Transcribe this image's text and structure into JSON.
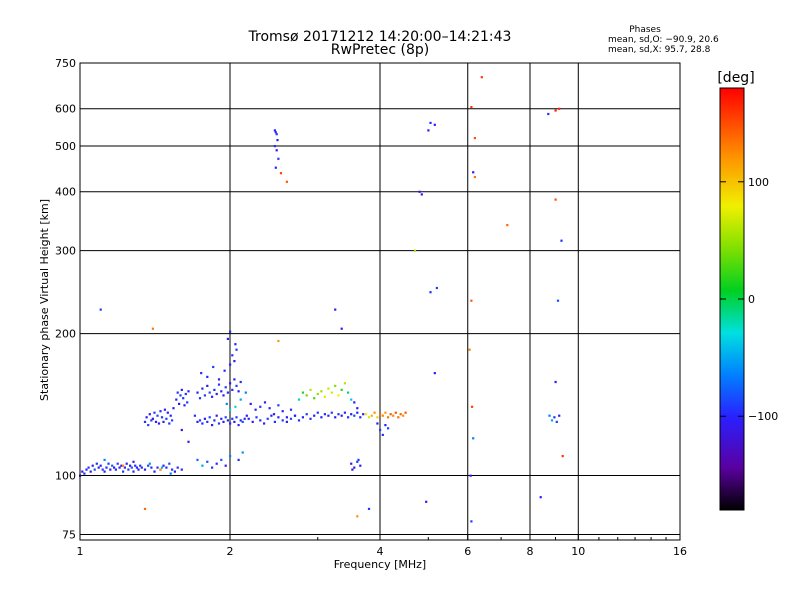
{
  "chart_data": {
    "type": "scatter",
    "title": "Tromsø 20171212 14:20:00–14:21:43",
    "subtitle": "RwPretec (8p)",
    "xlabel": "Frequency [MHz]",
    "ylabel": "Stationary phase Virtual Height [km]",
    "x_scale": "log2",
    "y_scale": "log",
    "xlim": [
      1,
      16
    ],
    "ylim": [
      73,
      750
    ],
    "x_ticks": [
      1,
      2,
      4,
      6,
      8,
      10,
      16
    ],
    "x_tick_labels": [
      "1",
      "2",
      "4",
      "6",
      "8",
      "10",
      "16"
    ],
    "y_ticks": [
      75,
      100,
      200,
      300,
      400,
      500,
      600,
      750
    ],
    "y_tick_labels": [
      "75",
      "100",
      "200",
      "300",
      "400",
      "500",
      "600",
      "750"
    ],
    "grid": true,
    "phases_box": {
      "title": "Phases",
      "line_o": "mean, sd,O: −90.9, 20.6",
      "line_x": "mean, sd,X:  95.7, 28.8"
    },
    "colorbar": {
      "label": "[deg]",
      "range": [
        -180,
        180
      ],
      "ticks": [
        100,
        0,
        -100
      ],
      "tick_labels": [
        "100",
        "0",
        "−100"
      ]
    },
    "points": [
      [
        1.0,
        100,
        -110
      ],
      [
        1.01,
        102,
        -115
      ],
      [
        1.02,
        101,
        -105
      ],
      [
        1.03,
        103,
        -110
      ],
      [
        1.04,
        104,
        -100
      ],
      [
        1.05,
        102,
        -120
      ],
      [
        1.06,
        105,
        -110
      ],
      [
        1.07,
        103,
        -95
      ],
      [
        1.08,
        106,
        -105
      ],
      [
        1.09,
        104,
        -112
      ],
      [
        1.1,
        105,
        -108
      ],
      [
        1.11,
        103,
        -100
      ],
      [
        1.12,
        102,
        -118
      ],
      [
        1.13,
        104,
        -106
      ],
      [
        1.14,
        106,
        -102
      ],
      [
        1.15,
        103,
        -110
      ],
      [
        1.16,
        105,
        -90
      ],
      [
        1.17,
        104,
        -114
      ],
      [
        1.18,
        103,
        -105
      ],
      [
        1.19,
        106,
        -98
      ],
      [
        1.2,
        104,
        -110
      ],
      [
        1.21,
        105,
        -120
      ],
      [
        1.22,
        102,
        -104
      ],
      [
        1.23,
        104,
        -108
      ],
      [
        1.24,
        106,
        -112
      ],
      [
        1.25,
        103,
        -100
      ],
      [
        1.26,
        105,
        -116
      ],
      [
        1.27,
        104,
        -95
      ],
      [
        1.28,
        102,
        -108
      ],
      [
        1.29,
        105,
        -103
      ],
      [
        1.3,
        104,
        -110
      ],
      [
        1.31,
        103,
        -119
      ],
      [
        1.32,
        105,
        -101
      ],
      [
        1.33,
        104,
        -107
      ],
      [
        1.35,
        103,
        -112
      ],
      [
        1.37,
        105,
        -99
      ],
      [
        1.39,
        104,
        -108
      ],
      [
        1.41,
        102,
        -115
      ],
      [
        1.43,
        104,
        -105
      ],
      [
        1.45,
        103,
        -100
      ],
      [
        1.47,
        105,
        -112
      ],
      [
        1.49,
        104,
        -109
      ],
      [
        1.51,
        106,
        -95
      ],
      [
        1.53,
        103,
        -104
      ],
      [
        1.55,
        102,
        -117
      ],
      [
        1.57,
        104,
        -106
      ],
      [
        1.12,
        108,
        -75
      ],
      [
        1.28,
        107,
        -115
      ],
      [
        1.38,
        106,
        -70
      ],
      [
        1.46,
        104,
        -55
      ],
      [
        1.52,
        101,
        -80
      ],
      [
        1.6,
        103,
        -105
      ],
      [
        1.35,
        130,
        -105
      ],
      [
        1.36,
        133,
        -112
      ],
      [
        1.37,
        128,
        -98
      ],
      [
        1.38,
        135,
        -110
      ],
      [
        1.39,
        131,
        -104
      ],
      [
        1.4,
        132,
        -118
      ],
      [
        1.41,
        136,
        -100
      ],
      [
        1.42,
        130,
        -110
      ],
      [
        1.43,
        134,
        -95
      ],
      [
        1.44,
        129,
        -112
      ],
      [
        1.45,
        137,
        -106
      ],
      [
        1.46,
        133,
        -102
      ],
      [
        1.47,
        130,
        -114
      ],
      [
        1.48,
        138,
        -108
      ],
      [
        1.49,
        132,
        -100
      ],
      [
        1.5,
        136,
        -115
      ],
      [
        1.51,
        129,
        -103
      ],
      [
        1.52,
        134,
        -109
      ],
      [
        1.53,
        131,
        -97
      ],
      [
        1.54,
        139,
        -111
      ],
      [
        1.56,
        145,
        -108
      ],
      [
        1.57,
        150,
        -102
      ],
      [
        1.58,
        142,
        -115
      ],
      [
        1.59,
        148,
        -99
      ],
      [
        1.6,
        152,
        -110
      ],
      [
        1.61,
        146,
        -104
      ],
      [
        1.62,
        141,
        -112
      ],
      [
        1.63,
        149,
        -106
      ],
      [
        1.64,
        143,
        -101
      ],
      [
        1.65,
        151,
        -113
      ],
      [
        1.6,
        125,
        -120
      ],
      [
        1.65,
        118,
        -110
      ],
      [
        1.7,
        134,
        -105
      ],
      [
        1.72,
        130,
        -112
      ],
      [
        1.74,
        131,
        -100
      ],
      [
        1.76,
        129,
        -109
      ],
      [
        1.78,
        132,
        -115
      ],
      [
        1.8,
        130,
        -103
      ],
      [
        1.82,
        133,
        -98
      ],
      [
        1.84,
        128,
        -110
      ],
      [
        1.86,
        131,
        -106
      ],
      [
        1.88,
        134,
        -112
      ],
      [
        1.9,
        129,
        -102
      ],
      [
        1.92,
        132,
        -108
      ],
      [
        1.94,
        130,
        -115
      ],
      [
        1.96,
        133,
        -99
      ],
      [
        1.98,
        131,
        -105
      ],
      [
        2.0,
        129,
        -110
      ],
      [
        2.02,
        132,
        -103
      ],
      [
        2.04,
        130,
        -116
      ],
      [
        2.06,
        133,
        -100
      ],
      [
        2.08,
        128,
        -109
      ],
      [
        2.1,
        131,
        -112
      ],
      [
        2.12,
        130,
        -95
      ],
      [
        2.14,
        132,
        -107
      ],
      [
        2.16,
        134,
        -113
      ],
      [
        1.72,
        150,
        -112
      ],
      [
        1.74,
        146,
        -104
      ],
      [
        1.76,
        153,
        -108
      ],
      [
        1.78,
        148,
        -100
      ],
      [
        1.8,
        155,
        -115
      ],
      [
        1.82,
        150,
        -96
      ],
      [
        1.84,
        147,
        -110
      ],
      [
        1.86,
        152,
        -106
      ],
      [
        1.88,
        149,
        -113
      ],
      [
        1.9,
        156,
        -102
      ],
      [
        1.92,
        151,
        -109
      ],
      [
        1.94,
        148,
        -117
      ],
      [
        1.96,
        154,
        -101
      ],
      [
        1.98,
        150,
        -108
      ],
      [
        2.0,
        157,
        -112
      ],
      [
        2.02,
        152,
        -104
      ],
      [
        2.04,
        160,
        -110
      ],
      [
        2.06,
        155,
        -99
      ],
      [
        2.08,
        151,
        -114
      ],
      [
        2.1,
        158,
        -106
      ],
      [
        1.75,
        165,
        -105
      ],
      [
        1.8,
        162,
        -108
      ],
      [
        1.85,
        170,
        -100
      ],
      [
        1.9,
        160,
        -112
      ],
      [
        1.95,
        167,
        -106
      ],
      [
        2.0,
        172,
        -110
      ],
      [
        2.02,
        180,
        -104
      ],
      [
        2.04,
        175,
        -116
      ],
      [
        2.06,
        185,
        -102
      ],
      [
        2.05,
        190,
        -110
      ],
      [
        2.0,
        202,
        -105
      ],
      [
        1.98,
        195,
        -112
      ],
      [
        1.97,
        142,
        -75
      ],
      [
        2.0,
        138,
        -35
      ],
      [
        2.05,
        140,
        -25
      ],
      [
        2.1,
        145,
        -60
      ],
      [
        2.15,
        150,
        -80
      ],
      [
        2.2,
        142,
        -115
      ],
      [
        2.25,
        138,
        -108
      ],
      [
        2.3,
        140,
        -102
      ],
      [
        2.35,
        143,
        -111
      ],
      [
        2.4,
        139,
        -106
      ],
      [
        2.45,
        135,
        -113
      ],
      [
        2.5,
        141,
        -100
      ],
      [
        2.55,
        137,
        -109
      ],
      [
        2.6,
        133,
        -115
      ],
      [
        2.65,
        138,
        -104
      ],
      [
        2.7,
        134,
        -110
      ],
      [
        2.18,
        132,
        -108
      ],
      [
        2.22,
        130,
        -112
      ],
      [
        2.26,
        133,
        -101
      ],
      [
        2.3,
        131,
        -107
      ],
      [
        2.34,
        129,
        -114
      ],
      [
        2.38,
        132,
        -99
      ],
      [
        2.42,
        134,
        -110
      ],
      [
        2.46,
        130,
        -105
      ],
      [
        2.5,
        133,
        -112
      ],
      [
        2.55,
        131,
        -103
      ],
      [
        2.6,
        130,
        -109
      ],
      [
        2.65,
        132,
        -96
      ],
      [
        2.7,
        134,
        -113
      ],
      [
        2.75,
        131,
        -104
      ],
      [
        2.8,
        133,
        -110
      ],
      [
        2.85,
        135,
        -101
      ],
      [
        2.9,
        132,
        -108
      ],
      [
        2.95,
        134,
        -115
      ],
      [
        3.0,
        136,
        -102
      ],
      [
        3.05,
        133,
        -109
      ],
      [
        3.1,
        135,
        -106
      ],
      [
        3.15,
        134,
        -112
      ],
      [
        3.2,
        136,
        -100
      ],
      [
        3.25,
        133,
        -111
      ],
      [
        3.3,
        135,
        -104
      ],
      [
        3.35,
        134,
        -115
      ],
      [
        3.4,
        136,
        -108
      ],
      [
        3.45,
        133,
        -103
      ],
      [
        3.5,
        135,
        -110
      ],
      [
        3.55,
        134,
        -97
      ],
      [
        3.6,
        136,
        -112
      ],
      [
        3.65,
        133,
        -106
      ],
      [
        3.7,
        135,
        -109
      ],
      [
        2.75,
        145,
        -20
      ],
      [
        2.8,
        150,
        20
      ],
      [
        2.85,
        148,
        40
      ],
      [
        2.9,
        152,
        60
      ],
      [
        2.95,
        146,
        30
      ],
      [
        3.0,
        149,
        50
      ],
      [
        3.05,
        151,
        55
      ],
      [
        3.1,
        147,
        75
      ],
      [
        3.15,
        153,
        65
      ],
      [
        3.2,
        150,
        70
      ],
      [
        3.25,
        155,
        45
      ],
      [
        3.3,
        148,
        80
      ],
      [
        3.35,
        152,
        25
      ],
      [
        3.4,
        157,
        60
      ],
      [
        3.45,
        150,
        -10
      ],
      [
        3.5,
        145,
        -40
      ],
      [
        3.55,
        143,
        -115
      ],
      [
        3.6,
        139,
        -110
      ],
      [
        3.5,
        106,
        -108
      ],
      [
        3.55,
        104,
        -113
      ],
      [
        3.6,
        107,
        -102
      ],
      [
        3.65,
        105,
        -110
      ],
      [
        3.52,
        103,
        -120
      ],
      [
        3.62,
        108,
        -98
      ],
      [
        3.75,
        135,
        85
      ],
      [
        3.8,
        133,
        70
      ],
      [
        3.85,
        134,
        110
      ],
      [
        3.9,
        136,
        125
      ],
      [
        3.95,
        133,
        95
      ],
      [
        4.0,
        135,
        140
      ],
      [
        4.05,
        134,
        130
      ],
      [
        4.1,
        136,
        120
      ],
      [
        4.15,
        133,
        135
      ],
      [
        4.2,
        135,
        145
      ],
      [
        4.25,
        134,
        128
      ],
      [
        4.3,
        136,
        150
      ],
      [
        4.35,
        133,
        138
      ],
      [
        4.4,
        135,
        142
      ],
      [
        4.45,
        134,
        125
      ],
      [
        4.5,
        136,
        148
      ],
      [
        4.0,
        125,
        -100
      ],
      [
        4.05,
        122,
        -105
      ],
      [
        4.1,
        128,
        -110
      ],
      [
        4.15,
        126,
        -98
      ],
      [
        3.95,
        129,
        -112
      ],
      [
        1.72,
        108,
        -85
      ],
      [
        1.76,
        105,
        -60
      ],
      [
        1.8,
        107,
        -95
      ],
      [
        1.84,
        104,
        -102
      ],
      [
        1.88,
        106,
        -108
      ],
      [
        1.92,
        108,
        -90
      ],
      [
        1.96,
        105,
        -112
      ],
      [
        2.0,
        110,
        -80
      ],
      [
        2.08,
        108,
        -105
      ],
      [
        2.12,
        112,
        -70
      ],
      [
        2.46,
        540,
        -112
      ],
      [
        2.47,
        535,
        -106
      ],
      [
        2.48,
        530,
        -100
      ],
      [
        2.49,
        515,
        -110
      ],
      [
        2.46,
        500,
        -105
      ],
      [
        2.48,
        490,
        -116
      ],
      [
        2.5,
        470,
        -102
      ],
      [
        2.47,
        450,
        -108
      ],
      [
        2.53,
        438,
        155
      ],
      [
        5.0,
        540,
        -112
      ],
      [
        5.05,
        560,
        -105
      ],
      [
        5.15,
        555,
        -110
      ],
      [
        4.8,
        400,
        -115
      ],
      [
        4.85,
        395,
        -120
      ],
      [
        5.05,
        245,
        -105
      ],
      [
        5.2,
        250,
        -100
      ],
      [
        4.7,
        300,
        55
      ],
      [
        5.15,
        165,
        -110
      ],
      [
        4.95,
        88,
        -115
      ],
      [
        6.1,
        605,
        160
      ],
      [
        6.2,
        520,
        150
      ],
      [
        6.15,
        440,
        -115
      ],
      [
        6.2,
        430,
        135
      ],
      [
        6.1,
        235,
        145
      ],
      [
        6.05,
        185,
        130
      ],
      [
        6.12,
        140,
        155
      ],
      [
        6.15,
        120,
        -80
      ],
      [
        6.08,
        100,
        -110
      ],
      [
        6.1,
        80,
        -100
      ],
      [
        6.4,
        700,
        160
      ],
      [
        7.2,
        340,
        140
      ],
      [
        8.4,
        90,
        -110
      ],
      [
        8.7,
        585,
        -105
      ],
      [
        9.0,
        595,
        170
      ],
      [
        9.15,
        600,
        165
      ],
      [
        9.0,
        385,
        150
      ],
      [
        9.25,
        315,
        -105
      ],
      [
        9.1,
        235,
        -95
      ],
      [
        9.0,
        158,
        -110
      ],
      [
        8.75,
        134,
        -80
      ],
      [
        8.85,
        131,
        -60
      ],
      [
        8.95,
        133,
        -105
      ],
      [
        9.05,
        130,
        -100
      ],
      [
        9.15,
        134,
        -110
      ],
      [
        9.3,
        110,
        160
      ],
      [
        1.1,
        225,
        -100
      ],
      [
        3.25,
        225,
        -110
      ],
      [
        3.35,
        205,
        -115
      ],
      [
        3.6,
        82,
        125
      ],
      [
        3.8,
        85,
        -100
      ],
      [
        1.35,
        85,
        140
      ],
      [
        1.4,
        205,
        135
      ],
      [
        2.5,
        193,
        120
      ],
      [
        2.6,
        420,
        145
      ],
      [
        1.22,
        105,
        130
      ],
      [
        1.45,
        103,
        120
      ]
    ]
  }
}
